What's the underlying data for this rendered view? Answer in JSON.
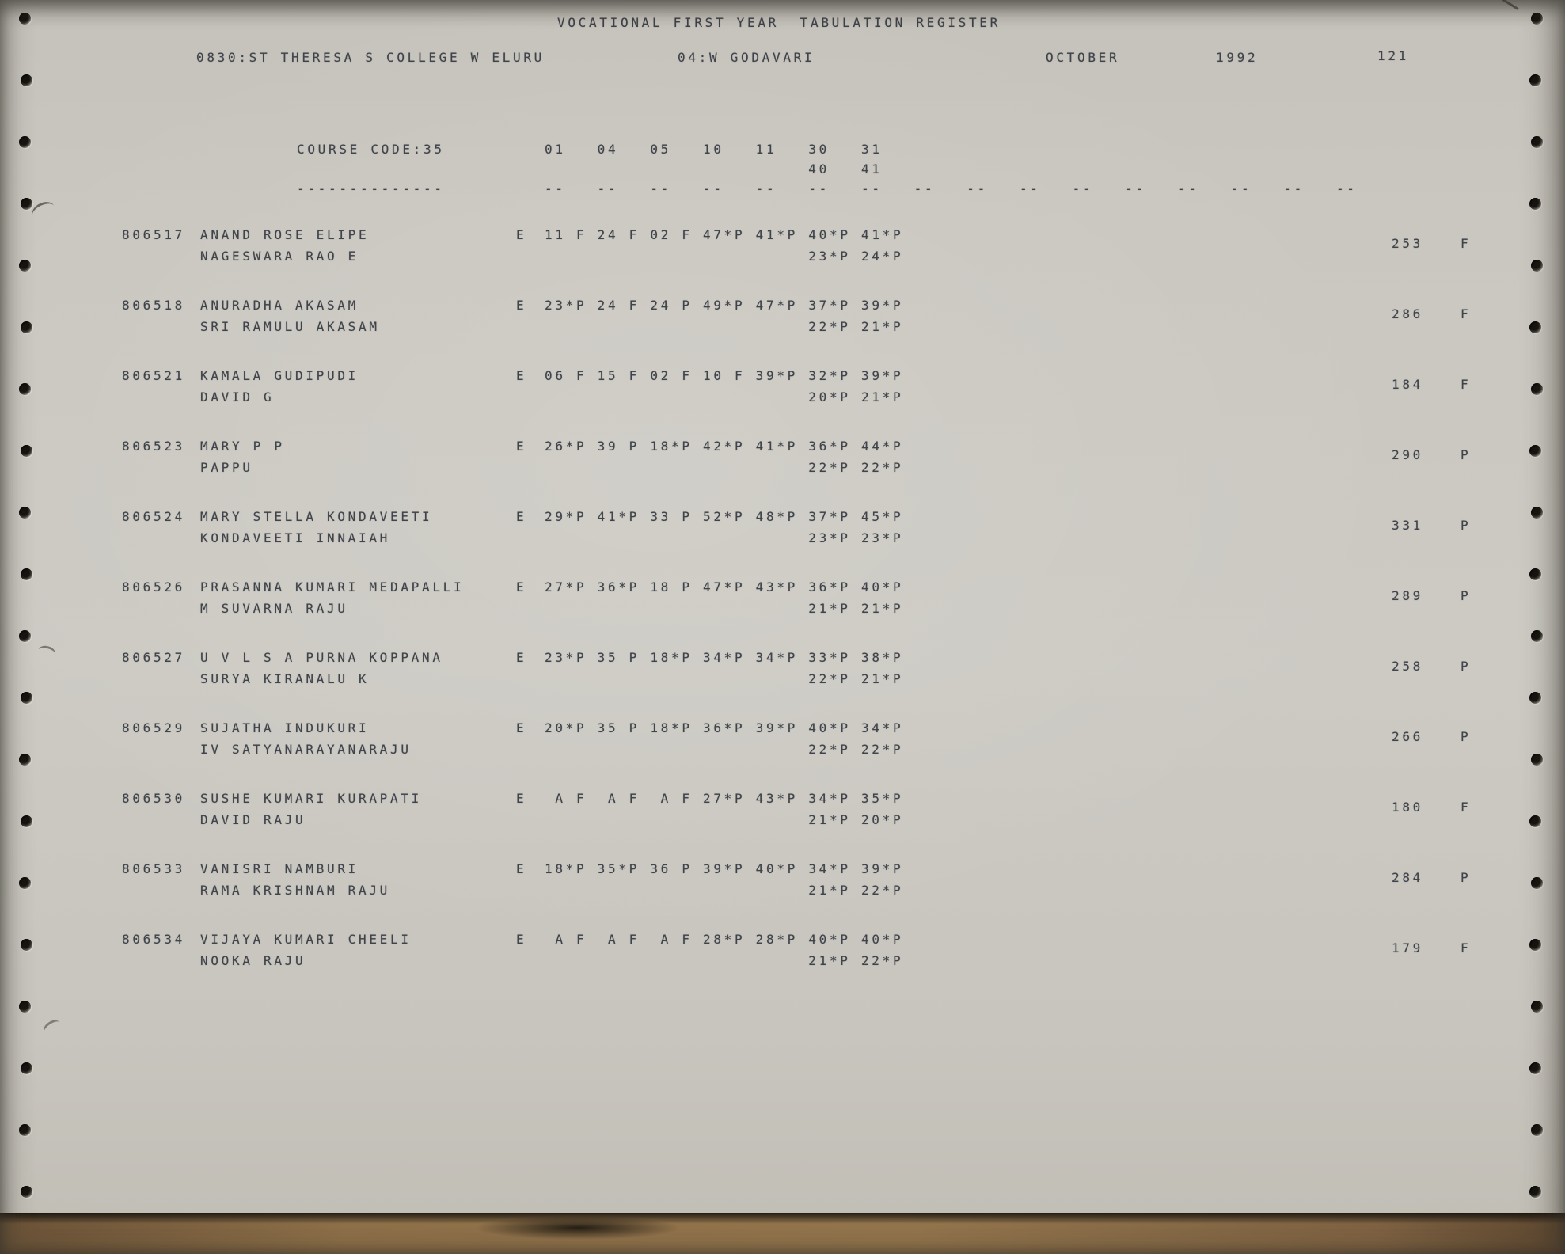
{
  "document": {
    "title": "VOCATIONAL FIRST YEAR  TABULATION REGISTER",
    "college": "0830:ST THERESA S COLLEGE W ELURU",
    "district": "04:W GODAVARI",
    "month": "OCTOBER",
    "year": "1992",
    "page_number": "121"
  },
  "register": {
    "course_code_label": "COURSE CODE:35",
    "course_code_underline": "--------------",
    "subject_columns": [
      "01",
      "04",
      "05",
      "10",
      "11",
      "30",
      "31"
    ],
    "subject_columns_second_line": [
      "40",
      "41"
    ],
    "ruling_dash": "--",
    "ruling_dash_count": 16,
    "students": [
      {
        "roll": "806517",
        "name": "ANAND ROSE ELIPE",
        "guardian": "NAGESWARA RAO E",
        "medium": "E",
        "marks": [
          "11 F",
          "24 F",
          "02 F",
          "47*P",
          "41*P",
          "40*P",
          "41*P"
        ],
        "marks_second_line": [
          "23*P",
          "24*P"
        ],
        "total": "253",
        "result": "F"
      },
      {
        "roll": "806518",
        "name": "ANURADHA AKASAM",
        "guardian": "SRI RAMULU AKASAM",
        "medium": "E",
        "marks": [
          "23*P",
          "24 F",
          "24 P",
          "49*P",
          "47*P",
          "37*P",
          "39*P"
        ],
        "marks_second_line": [
          "22*P",
          "21*P"
        ],
        "total": "286",
        "result": "F"
      },
      {
        "roll": "806521",
        "name": "KAMALA GUDIPUDI",
        "guardian": "DAVID G",
        "medium": "E",
        "marks": [
          "06 F",
          "15 F",
          "02 F",
          "10 F",
          "39*P",
          "32*P",
          "39*P"
        ],
        "marks_second_line": [
          "20*P",
          "21*P"
        ],
        "total": "184",
        "result": "F"
      },
      {
        "roll": "806523",
        "name": "MARY P P",
        "guardian": "PAPPU",
        "medium": "E",
        "marks": [
          "26*P",
          "39 P",
          "18*P",
          "42*P",
          "41*P",
          "36*P",
          "44*P"
        ],
        "marks_second_line": [
          "22*P",
          "22*P"
        ],
        "total": "290",
        "result": "P"
      },
      {
        "roll": "806524",
        "name": "MARY STELLA KONDAVEETI",
        "guardian": "KONDAVEETI INNAIAH",
        "medium": "E",
        "marks": [
          "29*P",
          "41*P",
          "33 P",
          "52*P",
          "48*P",
          "37*P",
          "45*P"
        ],
        "marks_second_line": [
          "23*P",
          "23*P"
        ],
        "total": "331",
        "result": "P"
      },
      {
        "roll": "806526",
        "name": "PRASANNA KUMARI MEDAPALLI",
        "guardian": "M SUVARNA RAJU",
        "medium": "E",
        "marks": [
          "27*P",
          "36*P",
          "18 P",
          "47*P",
          "43*P",
          "36*P",
          "40*P"
        ],
        "marks_second_line": [
          "21*P",
          "21*P"
        ],
        "total": "289",
        "result": "P"
      },
      {
        "roll": "806527",
        "name": "U V L S A PURNA KOPPANA",
        "guardian": "SURYA KIRANALU K",
        "medium": "E",
        "marks": [
          "23*P",
          "35 P",
          "18*P",
          "34*P",
          "34*P",
          "33*P",
          "38*P"
        ],
        "marks_second_line": [
          "22*P",
          "21*P"
        ],
        "total": "258",
        "result": "P"
      },
      {
        "roll": "806529",
        "name": "SUJATHA INDUKURI",
        "guardian": "IV SATYANARAYANARAJU",
        "medium": "E",
        "marks": [
          "20*P",
          "35 P",
          "18*P",
          "36*P",
          "39*P",
          "40*P",
          "34*P"
        ],
        "marks_second_line": [
          "22*P",
          "22*P"
        ],
        "total": "266",
        "result": "P"
      },
      {
        "roll": "806530",
        "name": "SUSHE KUMARI KURAPATI",
        "guardian": "DAVID RAJU",
        "medium": "E",
        "marks": [
          " A F",
          " A F",
          " A F",
          "27*P",
          "43*P",
          "34*P",
          "35*P"
        ],
        "marks_second_line": [
          "21*P",
          "20*P"
        ],
        "total": "180",
        "result": "F"
      },
      {
        "roll": "806533",
        "name": "VANISRI NAMBURI",
        "guardian": "RAMA KRISHNAM RAJU",
        "medium": "E",
        "marks": [
          "18*P",
          "35*P",
          "36 P",
          "39*P",
          "40*P",
          "34*P",
          "39*P"
        ],
        "marks_second_line": [
          "21*P",
          "22*P"
        ],
        "total": "284",
        "result": "P"
      },
      {
        "roll": "806534",
        "name": "VIJAYA KUMARI CHEELI",
        "guardian": "NOOKA RAJU",
        "medium": "E",
        "marks": [
          " A F",
          " A F",
          " A F",
          "28*P",
          "28*P",
          "40*P",
          "40*P"
        ],
        "marks_second_line": [
          "21*P",
          "22*P"
        ],
        "total": "179",
        "result": "F"
      }
    ]
  },
  "colors": {
    "paper": "#c9c6bf",
    "ink": "#3f434a",
    "desk": "#8e7049"
  }
}
